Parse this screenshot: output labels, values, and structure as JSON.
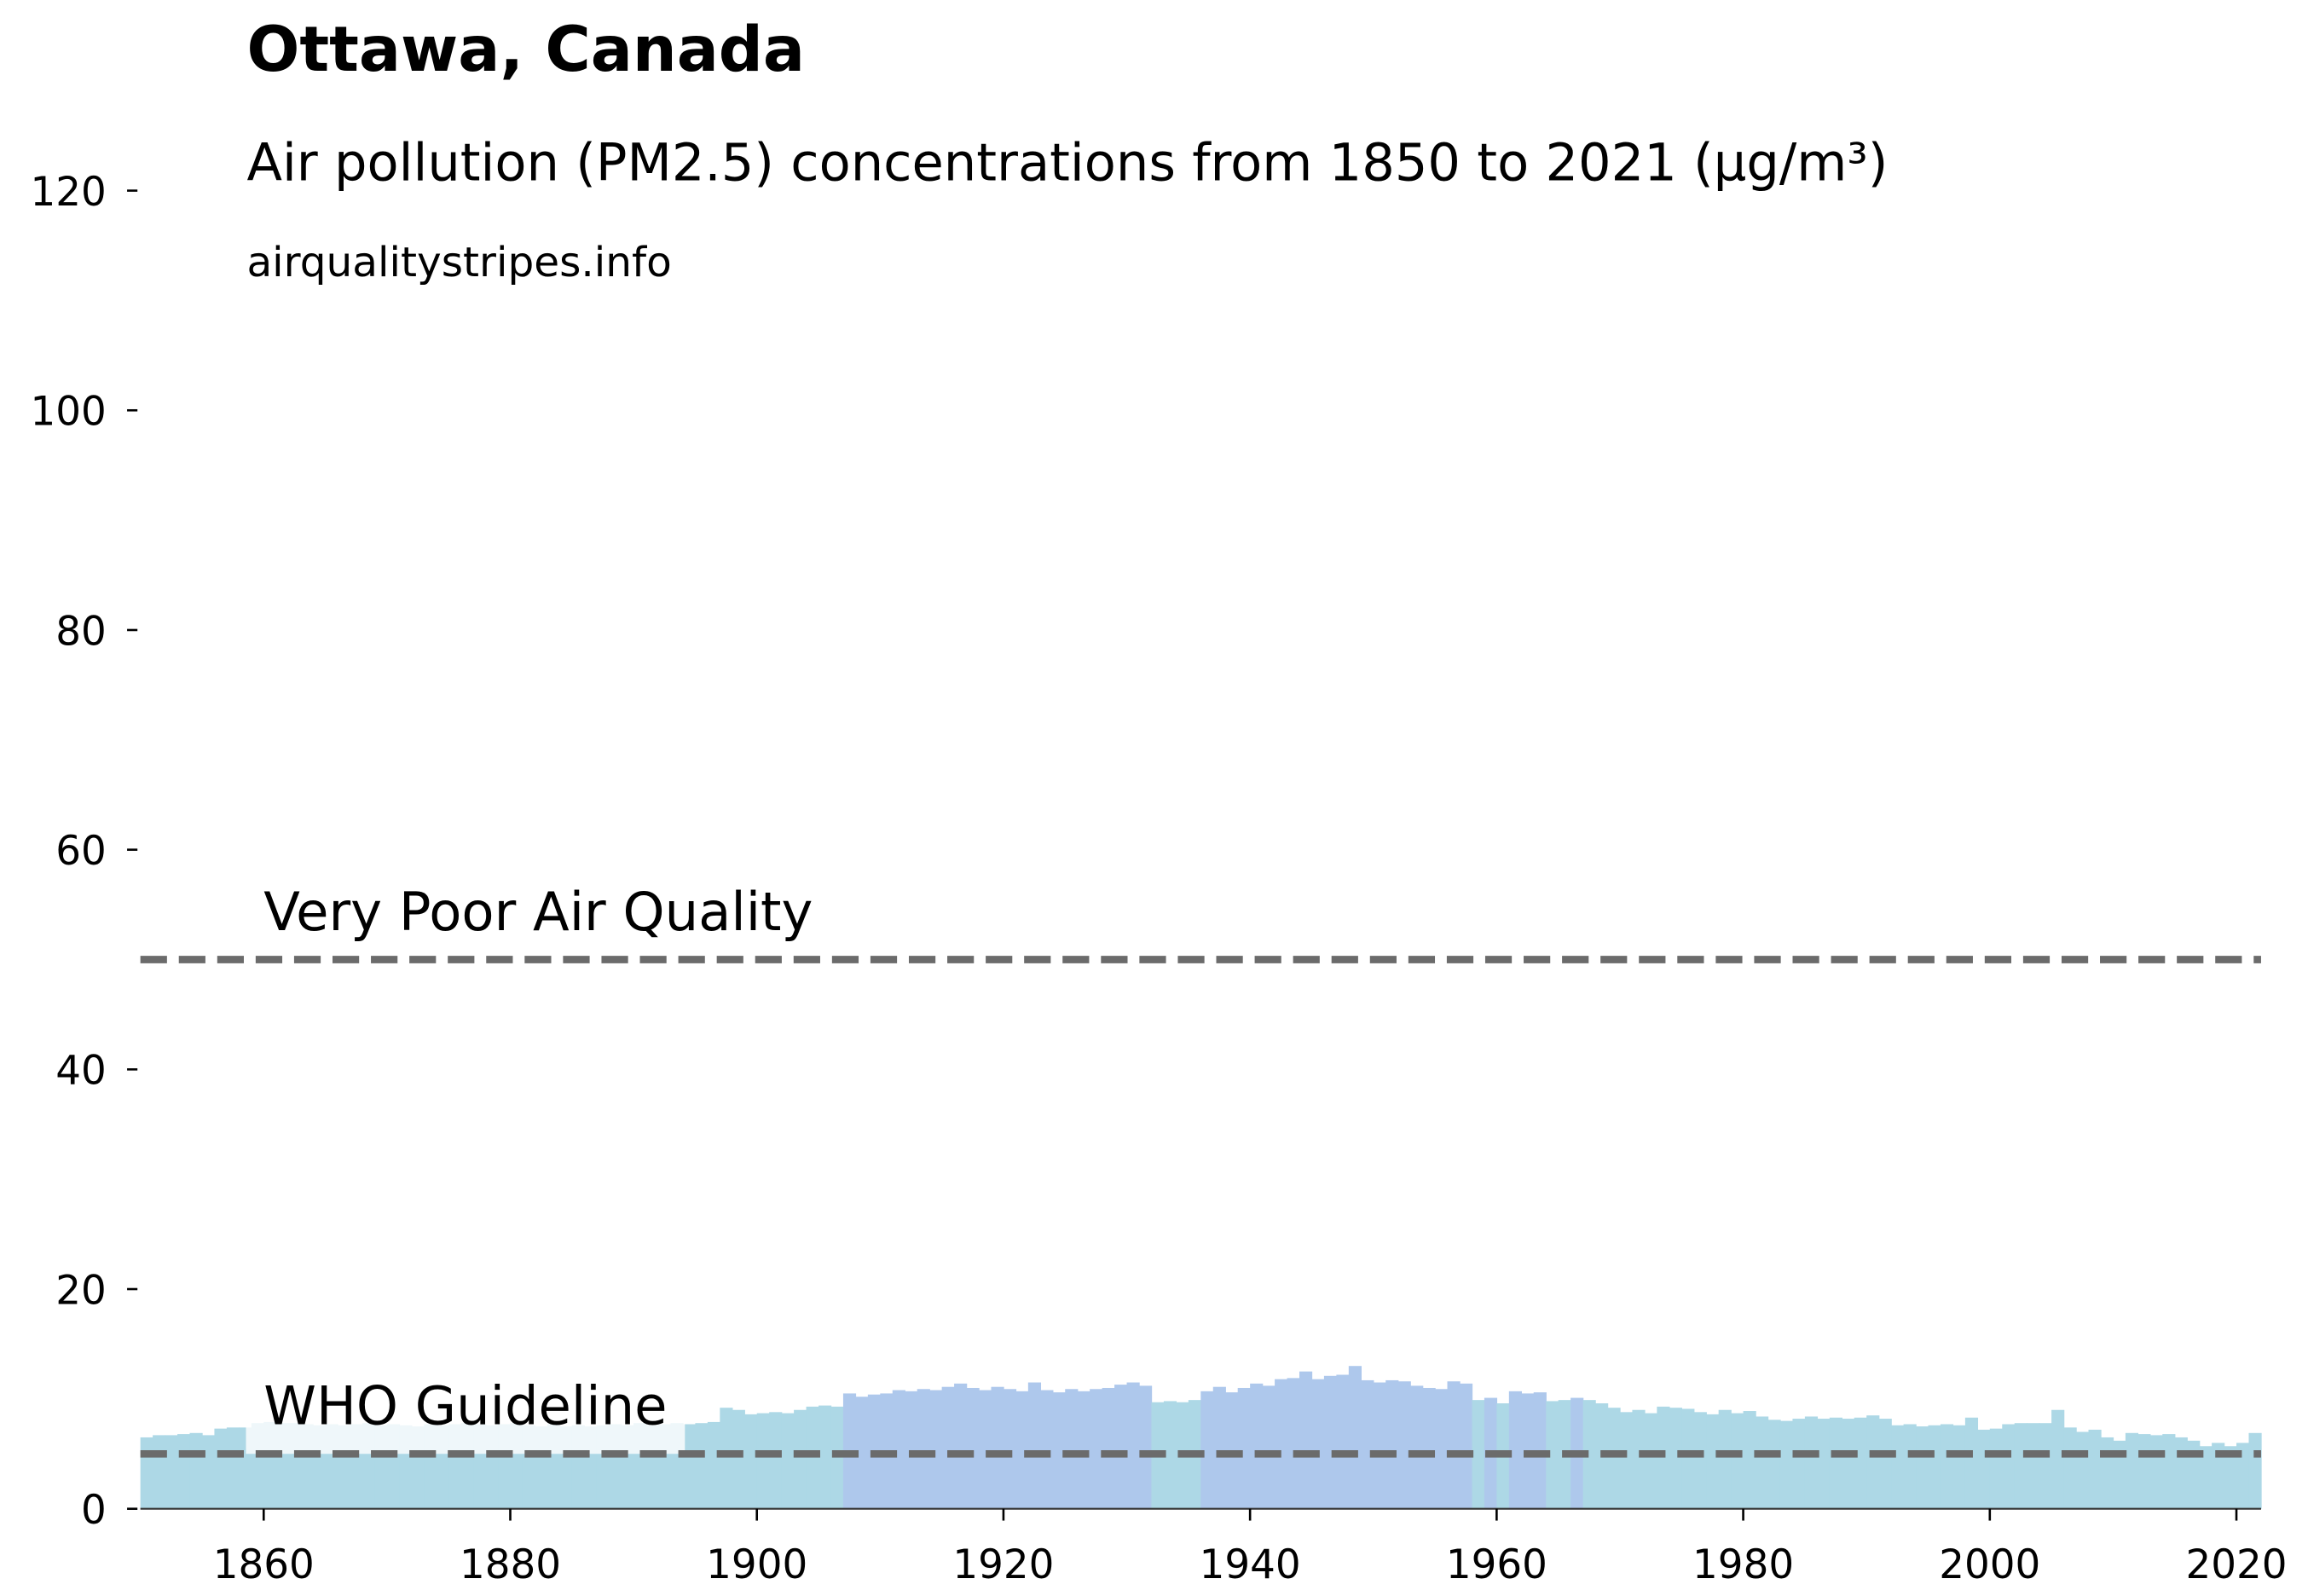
{
  "chart_data": {
    "type": "bar",
    "title": "Ottawa, Canada",
    "subtitle": "Air pollution (PM2.5) concentrations from 1850 to 2021 (µg/m³)",
    "source": "airqualitystripes.info",
    "x": [
      1850,
      1851,
      1852,
      1853,
      1854,
      1855,
      1856,
      1857,
      1858,
      1859,
      1860,
      1861,
      1862,
      1863,
      1864,
      1865,
      1866,
      1867,
      1868,
      1869,
      1870,
      1871,
      1872,
      1873,
      1874,
      1875,
      1876,
      1877,
      1878,
      1879,
      1880,
      1881,
      1882,
      1883,
      1884,
      1885,
      1886,
      1887,
      1888,
      1889,
      1890,
      1891,
      1892,
      1893,
      1894,
      1895,
      1896,
      1897,
      1898,
      1899,
      1900,
      1901,
      1902,
      1903,
      1904,
      1905,
      1906,
      1907,
      1908,
      1909,
      1910,
      1911,
      1912,
      1913,
      1914,
      1915,
      1916,
      1917,
      1918,
      1919,
      1920,
      1921,
      1922,
      1923,
      1924,
      1925,
      1926,
      1927,
      1928,
      1929,
      1930,
      1931,
      1932,
      1933,
      1934,
      1935,
      1936,
      1937,
      1938,
      1939,
      1940,
      1941,
      1942,
      1943,
      1944,
      1945,
      1946,
      1947,
      1948,
      1949,
      1950,
      1951,
      1952,
      1953,
      1954,
      1955,
      1956,
      1957,
      1958,
      1959,
      1960,
      1961,
      1962,
      1963,
      1964,
      1965,
      1966,
      1967,
      1968,
      1969,
      1970,
      1971,
      1972,
      1973,
      1974,
      1975,
      1976,
      1977,
      1978,
      1979,
      1980,
      1981,
      1982,
      1983,
      1984,
      1985,
      1986,
      1987,
      1988,
      1989,
      1990,
      1991,
      1992,
      1993,
      1994,
      1995,
      1996,
      1997,
      1998,
      1999,
      2000,
      2001,
      2002,
      2003,
      2004,
      2005,
      2006,
      2007,
      2008,
      2009,
      2010,
      2011,
      2012,
      2013,
      2014,
      2015,
      2016,
      2017,
      2018,
      2019,
      2020,
      2021
    ],
    "values": [
      6.5,
      6.7,
      6.7,
      6.8,
      6.9,
      6.7,
      7.3,
      7.4,
      7.4,
      7.8,
      7.9,
      7.8,
      7.8,
      7.7,
      7.6,
      7.7,
      7.6,
      7.7,
      7.8,
      7.6,
      7.7,
      7.6,
      7.5,
      7.7,
      7.6,
      7.7,
      7.8,
      7.7,
      7.6,
      7.7,
      7.8,
      7.6,
      7.5,
      7.7,
      7.5,
      7.6,
      7.5,
      7.6,
      7.7,
      7.6,
      7.8,
      7.6,
      7.7,
      7.8,
      7.7,
      7.8,
      7.9,
      9.2,
      9.0,
      8.6,
      8.7,
      8.8,
      8.7,
      9.0,
      9.3,
      9.4,
      9.3,
      10.5,
      10.2,
      10.4,
      10.5,
      10.8,
      10.7,
      10.9,
      10.8,
      11.1,
      11.4,
      11.0,
      10.8,
      11.1,
      10.9,
      10.7,
      11.5,
      10.8,
      10.6,
      10.9,
      10.7,
      10.9,
      11.0,
      11.3,
      11.5,
      11.2,
      9.7,
      9.8,
      9.7,
      9.9,
      10.7,
      11.1,
      10.6,
      11.0,
      11.4,
      11.2,
      11.8,
      11.9,
      12.5,
      11.8,
      12.1,
      12.2,
      13.0,
      11.7,
      11.5,
      11.7,
      11.6,
      11.2,
      11.0,
      10.9,
      11.6,
      11.4,
      9.9,
      10.1,
      9.6,
      10.7,
      10.5,
      10.6,
      9.8,
      9.9,
      10.1,
      9.9,
      9.6,
      9.2,
      8.8,
      9.0,
      8.7,
      9.3,
      9.2,
      9.1,
      8.8,
      8.6,
      9.0,
      8.7,
      8.9,
      8.4,
      8.1,
      8.0,
      8.2,
      8.4,
      8.2,
      8.3,
      8.2,
      8.3,
      8.5,
      8.2,
      7.6,
      7.7,
      7.5,
      7.6,
      7.7,
      7.6,
      8.3,
      7.2,
      7.3,
      7.7,
      7.8,
      7.8,
      7.8,
      9.0,
      7.4,
      7.0,
      7.2,
      6.5,
      6.2,
      6.9,
      6.8,
      6.7,
      6.8,
      6.5,
      6.2,
      5.7,
      6.0,
      5.7,
      6.0,
      6.9
    ],
    "colors": [
      "#add8e6",
      "#add8e6",
      "#add8e6",
      "#add8e6",
      "#add8e6",
      "#add8e6",
      "#add8e6",
      "#add8e6",
      "#add8e6",
      "#add8e6",
      "#add8e6",
      "#add8e6",
      "#add8e6",
      "#add8e6",
      "#add8e6",
      "#add8e6",
      "#add8e6",
      "#add8e6",
      "#add8e6",
      "#add8e6",
      "#add8e6",
      "#add8e6",
      "#add8e6",
      "#add8e6",
      "#add8e6",
      "#add8e6",
      "#add8e6",
      "#add8e6",
      "#add8e6",
      "#add8e6",
      "#add8e6",
      "#add8e6",
      "#add8e6",
      "#add8e6",
      "#add8e6",
      "#add8e6",
      "#add8e6",
      "#add8e6",
      "#add8e6",
      "#add8e6",
      "#add8e6",
      "#add8e6",
      "#add8e6",
      "#add8e6",
      "#add8e6",
      "#add8e6",
      "#add8e6",
      "#add8e6",
      "#add8e6",
      "#add8e6",
      "#add8e6",
      "#add8e6",
      "#add8e6",
      "#add8e6",
      "#add8e6",
      "#add8e6",
      "#add8e6",
      "#aec8ec",
      "#aec8ec",
      "#aec8ec",
      "#aec8ec",
      "#aec8ec",
      "#aec8ec",
      "#aec8ec",
      "#aec8ec",
      "#aec8ec",
      "#aec8ec",
      "#aec8ec",
      "#aec8ec",
      "#aec8ec",
      "#aec8ec",
      "#aec8ec",
      "#aec8ec",
      "#aec8ec",
      "#aec8ec",
      "#aec8ec",
      "#aec8ec",
      "#aec8ec",
      "#aec8ec",
      "#aec8ec",
      "#aec8ec",
      "#aec8ec",
      "#add8e6",
      "#add8e6",
      "#add8e6",
      "#add8e6",
      "#aec8ec",
      "#aec8ec",
      "#aec8ec",
      "#aec8ec",
      "#aec8ec",
      "#aec8ec",
      "#aec8ec",
      "#aec8ec",
      "#aec8ec",
      "#aec8ec",
      "#aec8ec",
      "#aec8ec",
      "#aec8ec",
      "#aec8ec",
      "#aec8ec",
      "#aec8ec",
      "#aec8ec",
      "#aec8ec",
      "#aec8ec",
      "#aec8ec",
      "#aec8ec",
      "#aec8ec",
      "#add8e6",
      "#aec8ec",
      "#add8e6",
      "#aec8ec",
      "#aec8ec",
      "#aec8ec",
      "#add8e6",
      "#add8e6",
      "#aec8ec",
      "#add8e6",
      "#add8e6",
      "#add8e6",
      "#add8e6",
      "#add8e6",
      "#add8e6",
      "#add8e6",
      "#add8e6",
      "#add8e6",
      "#add8e6",
      "#add8e6",
      "#add8e6",
      "#add8e6",
      "#add8e6",
      "#add8e6",
      "#add8e6",
      "#add8e6",
      "#add8e6",
      "#add8e6",
      "#add8e6",
      "#add8e6",
      "#add8e6",
      "#add8e6",
      "#add8e6",
      "#add8e6",
      "#add8e6",
      "#add8e6",
      "#add8e6",
      "#add8e6",
      "#add8e6",
      "#add8e6",
      "#add8e6",
      "#add8e6",
      "#add8e6",
      "#add8e6",
      "#add8e6",
      "#add8e6",
      "#add8e6",
      "#add8e6",
      "#add8e6",
      "#add8e6",
      "#add8e6",
      "#add8e6",
      "#add8e6",
      "#add8e6",
      "#add8e6",
      "#add8e6",
      "#add8e6",
      "#add8e6",
      "#add8e6",
      "#add8e6",
      "#add8e6",
      "#add8e6",
      "#add8e6",
      "#add8e6"
    ],
    "reference_lines": [
      {
        "value": 50,
        "label": "Very Poor Air Quality",
        "color": "#6b6b6b"
      },
      {
        "value": 5,
        "label": "WHO Guideline",
        "color": "#6b6b6b"
      }
    ],
    "xlim": [
      1850,
      2022
    ],
    "xticks": [
      1860,
      1880,
      1900,
      1920,
      1940,
      1960,
      1980,
      2000,
      2020
    ],
    "ylim": [
      0,
      120
    ],
    "yticks": [
      0,
      20,
      40,
      60,
      80,
      100,
      120
    ]
  }
}
